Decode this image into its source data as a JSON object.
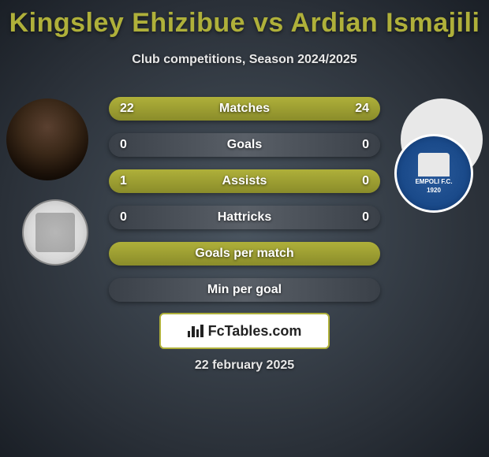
{
  "title": "Kingsley Ehizibue vs Ardian Ismajili",
  "subtitle": "Club competitions, Season 2024/2025",
  "date": "22 february 2025",
  "footer_brand": "FcTables.com",
  "colors": {
    "accent": "#afb03a",
    "accent_dark": "#8a8c2a",
    "empty_dark": "#3a4048",
    "empty_light": "#5a6068",
    "text": "#ffffff"
  },
  "club_right_text": "EMPOLI F.C.",
  "club_right_year": "1920",
  "stats": [
    {
      "label": "Matches",
      "left_val": "22",
      "right_val": "24",
      "left_pct": 47.8,
      "right_pct": 52.2,
      "has_values": true
    },
    {
      "label": "Goals",
      "left_val": "0",
      "right_val": "0",
      "left_pct": 0,
      "right_pct": 0,
      "has_values": true
    },
    {
      "label": "Assists",
      "left_val": "1",
      "right_val": "0",
      "left_pct": 100,
      "right_pct": 0,
      "has_values": true
    },
    {
      "label": "Hattricks",
      "left_val": "0",
      "right_val": "0",
      "left_pct": 0,
      "right_pct": 0,
      "has_values": true
    },
    {
      "label": "Goals per match",
      "left_val": "",
      "right_val": "",
      "left_pct": 100,
      "right_pct": 0,
      "has_values": false
    },
    {
      "label": "Min per goal",
      "left_val": "",
      "right_val": "",
      "left_pct": 0,
      "right_pct": 0,
      "has_values": false
    }
  ]
}
